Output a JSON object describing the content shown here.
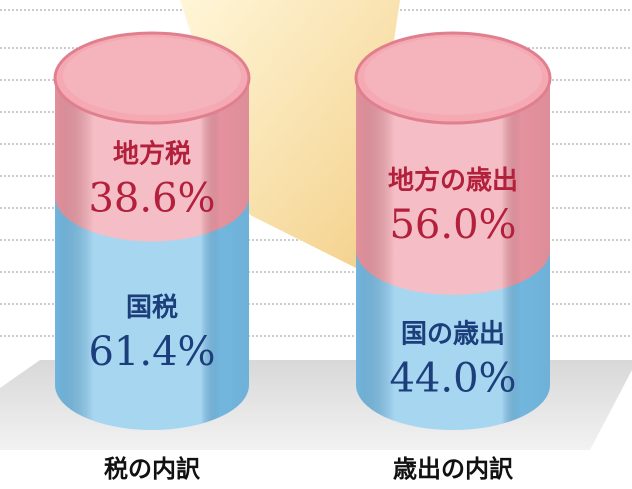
{
  "chart_data": [
    {
      "type": "cylinder",
      "title": "税の内訳",
      "categories": [
        "地方税",
        "国税"
      ],
      "values": [
        38.6,
        61.4
      ],
      "value_labels": [
        "38.6%",
        "61.4%"
      ],
      "colors": [
        "#f09aa6",
        "#78c0ea"
      ]
    },
    {
      "type": "cylinder",
      "title": "歳出の内訳",
      "categories": [
        "地方の歳出",
        "国の歳出"
      ],
      "values": [
        56.0,
        44.0
      ],
      "value_labels": [
        "56.0%",
        "44.0%"
      ],
      "colors": [
        "#f09aa6",
        "#78c0ea"
      ]
    }
  ]
}
